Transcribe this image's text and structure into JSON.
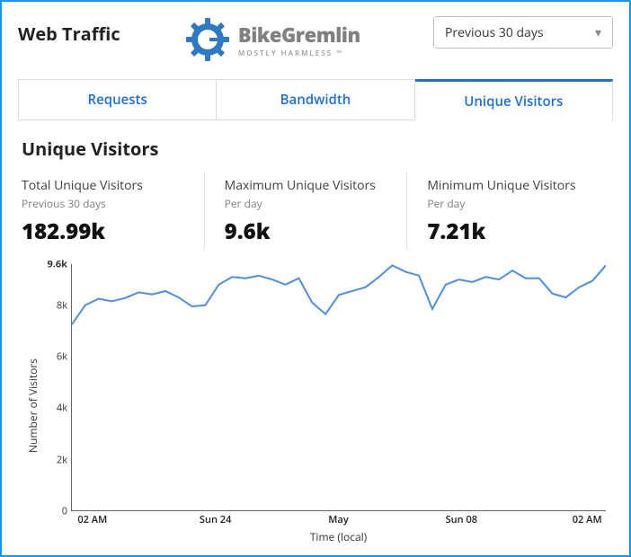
{
  "header": {
    "title": "Web Traffic",
    "range_selected": "Previous 30 days",
    "logo": {
      "word": "BikeGremlin",
      "tagline": "MOSTLY HARMLESS ™",
      "gear_color": "#2f78c4",
      "text_color": "#808080"
    }
  },
  "tabs": [
    {
      "label": "Requests",
      "active": false
    },
    {
      "label": "Bandwidth",
      "active": false
    },
    {
      "label": "Unique Visitors",
      "active": true
    }
  ],
  "section_title": "Unique Visitors",
  "stats": [
    {
      "label": "Total Unique Visitors",
      "sub": "Previous 30 days",
      "value": "182.99k"
    },
    {
      "label": "Maximum Unique Visitors",
      "sub": "Per day",
      "value": "9.6k"
    },
    {
      "label": "Minimum Unique Visitors",
      "sub": "Per day",
      "value": "7.21k"
    }
  ],
  "chart": {
    "type": "line",
    "line_color": "#4f8fe0",
    "line_width": 2,
    "background_color": "#ffffff",
    "axis_color": "#666666",
    "ylabel": "Number of Visitors",
    "xlabel": "Time (local)",
    "ylim": [
      0,
      9600
    ],
    "yticks": [
      0,
      2000,
      4000,
      6000,
      8000
    ],
    "ytick_labels": [
      "0",
      "2k",
      "4k",
      "6k",
      "8k"
    ],
    "topline_value": 9600,
    "topline_label": "9.6k",
    "xtick_positions": [
      0.04,
      0.27,
      0.5,
      0.73,
      0.965
    ],
    "xtick_labels": [
      "02 AM",
      "Sun 24",
      "May",
      "Sun 08",
      "02 AM"
    ],
    "values": [
      7250,
      8000,
      8250,
      8150,
      8280,
      8500,
      8420,
      8550,
      8300,
      7950,
      8000,
      8800,
      9100,
      9050,
      9150,
      9000,
      8800,
      9050,
      8100,
      7650,
      8400,
      8550,
      8700,
      9100,
      9550,
      9300,
      9150,
      7850,
      8800,
      9000,
      8900,
      9100,
      9000,
      9350,
      9050,
      9050,
      8450,
      8300,
      8700,
      8950,
      9550
    ]
  }
}
